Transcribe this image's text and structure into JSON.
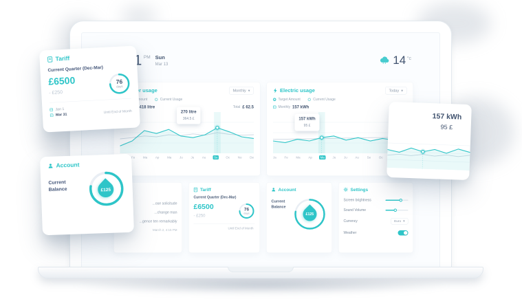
{
  "colors": {
    "accent": "#2ec5c8",
    "navy": "#3d4e68",
    "gray": "#9aa6b5"
  },
  "header": {
    "time": "21",
    "meridiem": "PM",
    "day": "Sun",
    "date": "Mar 13",
    "temperature": "14",
    "temperature_unit": "°c"
  },
  "panels": {
    "water": {
      "title": "Water usage",
      "range_dropdown": "Monthly",
      "legend": [
        "Target Amount",
        "Current Usage"
      ],
      "stat_label": "Monthly",
      "stat_value": "418 litre",
      "total_label": "Total",
      "total_value": "£ 62.5",
      "tooltip_value": "270 litre",
      "tooltip_price": "364.5 £",
      "months": [
        "Ja",
        "Fe",
        "Ma",
        "Ap",
        "Ma",
        "Ju",
        "Ju",
        "Au",
        "Se",
        "Oc",
        "No",
        "De"
      ],
      "chart": {
        "current": [
          18,
          30,
          55,
          48,
          58,
          42,
          38,
          45,
          62,
          52,
          40,
          36
        ],
        "target": [
          35,
          38,
          42,
          40,
          45,
          43,
          47,
          44,
          50,
          46,
          44,
          45
        ],
        "dot": 8,
        "band": 8
      }
    },
    "electric": {
      "title": "Electric usage",
      "range_dropdown": "Today",
      "legend": [
        "Target Amount",
        "Current Usage"
      ],
      "stat_label": "Monthly",
      "stat_value": "157 kWh",
      "tooltip_value": "157 kWh",
      "tooltip_price": "95 £",
      "months": [
        "Ja",
        "Fe",
        "Ma",
        "Ap",
        "Ma",
        "Ju",
        "Ju",
        "Au",
        "Se",
        "Oc",
        "No",
        "De"
      ],
      "chart": {
        "current": [
          30,
          26,
          34,
          30,
          38,
          42,
          32,
          38,
          30,
          36,
          32,
          44
        ],
        "target": [
          34,
          34,
          35,
          35,
          36,
          36,
          37,
          37,
          38,
          38,
          39,
          39
        ],
        "dot": 4,
        "band": 4
      }
    }
  },
  "cards": {
    "notes": {
      "lines": [
        "...ose solicitude",
        "...change man",
        "...gence ten remarkably"
      ],
      "timestamp": "March 2, 4:15 PM"
    },
    "tariff": {
      "title": "Tariff",
      "quarter": "Current Quarter (Dec-Mar)",
      "amount": "£6500",
      "discount": "- £250",
      "days_value": "76",
      "days_label": "days",
      "caption": "Until End of Month"
    },
    "account": {
      "title": "Account",
      "balance_label": "Current Balance",
      "balance": "£125"
    },
    "settings": {
      "title": "Settings",
      "brightness_label": "Screen brightness",
      "brightness_percent": 70,
      "volume_label": "Sound Volume",
      "volume_percent": 45,
      "currency_label": "Currency",
      "currency_value": "Euro",
      "weather_label": "Weather",
      "weather_on": true
    }
  },
  "floating_cards": {
    "tariff": {
      "title": "Tariff",
      "quarter": "Current Quarter (Dec-Mar)",
      "amount": "£6500",
      "discount": "- £250",
      "days_value": "76",
      "days_label": "days",
      "date_start": "Jan 1",
      "date_end": "Mar 31",
      "caption": "Until End of Month"
    },
    "account": {
      "title": "Account",
      "balance_label": "Current Balance",
      "balance": "£125"
    },
    "tooltip": {
      "value": "157 kWh",
      "price": "95 £",
      "chart": {
        "current": [
          55,
          48,
          62,
          52,
          60,
          50,
          64,
          55
        ],
        "target": [
          38,
          42,
          39,
          44,
          40,
          45,
          41,
          46
        ],
        "dot": 3
      }
    }
  }
}
